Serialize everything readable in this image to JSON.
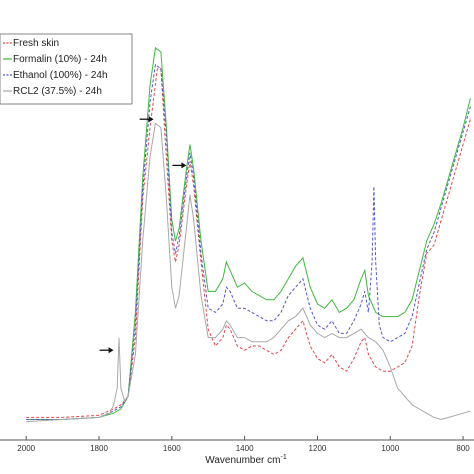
{
  "chart_data": {
    "type": "line",
    "title": "",
    "xlabel": "Wavenumber cm",
    "xlabel_superscript": "-1",
    "ylabel": "",
    "x_reversed": true,
    "xlim": [
      2050,
      770
    ],
    "ylim": [
      0,
      1
    ],
    "x_ticks": [
      2000,
      1800,
      1600,
      1400,
      1200,
      1000,
      800
    ],
    "x_tick_labels": [
      "2000",
      "1800",
      "1600",
      "1400",
      "1200",
      "1000",
      "800"
    ],
    "grid": false,
    "legend_position": "top-left",
    "series": [
      {
        "name": "Fresh skin",
        "color": "#e0474c",
        "dash": "3,2",
        "points": [
          [
            2000,
            0.03
          ],
          [
            1900,
            0.03
          ],
          [
            1800,
            0.035
          ],
          [
            1760,
            0.05
          ],
          [
            1740,
            0.06
          ],
          [
            1720,
            0.08
          ],
          [
            1700,
            0.22
          ],
          [
            1680,
            0.55
          ],
          [
            1660,
            0.72
          ],
          [
            1640,
            0.86
          ],
          [
            1630,
            0.86
          ],
          [
            1620,
            0.72
          ],
          [
            1600,
            0.45
          ],
          [
            1590,
            0.4
          ],
          [
            1580,
            0.44
          ],
          [
            1560,
            0.58
          ],
          [
            1550,
            0.64
          ],
          [
            1540,
            0.58
          ],
          [
            1520,
            0.4
          ],
          [
            1500,
            0.24
          ],
          [
            1480,
            0.2
          ],
          [
            1460,
            0.22
          ],
          [
            1450,
            0.25
          ],
          [
            1440,
            0.24
          ],
          [
            1420,
            0.2
          ],
          [
            1400,
            0.19
          ],
          [
            1380,
            0.2
          ],
          [
            1360,
            0.2
          ],
          [
            1340,
            0.19
          ],
          [
            1320,
            0.18
          ],
          [
            1300,
            0.19
          ],
          [
            1280,
            0.22
          ],
          [
            1260,
            0.24
          ],
          [
            1240,
            0.26
          ],
          [
            1220,
            0.2
          ],
          [
            1200,
            0.17
          ],
          [
            1180,
            0.16
          ],
          [
            1160,
            0.18
          ],
          [
            1140,
            0.15
          ],
          [
            1120,
            0.14
          ],
          [
            1100,
            0.17
          ],
          [
            1080,
            0.21
          ],
          [
            1070,
            0.22
          ],
          [
            1060,
            0.18
          ],
          [
            1040,
            0.15
          ],
          [
            1020,
            0.14
          ],
          [
            1000,
            0.14
          ],
          [
            980,
            0.15
          ],
          [
            960,
            0.16
          ],
          [
            940,
            0.2
          ],
          [
            920,
            0.32
          ],
          [
            900,
            0.42
          ],
          [
            880,
            0.44
          ],
          [
            860,
            0.5
          ],
          [
            840,
            0.56
          ],
          [
            820,
            0.62
          ],
          [
            800,
            0.68
          ],
          [
            780,
            0.74
          ]
        ]
      },
      {
        "name": "Formalin (10%) - 24h",
        "color": "#3fb83f",
        "dash": "",
        "points": [
          [
            2000,
            0.025
          ],
          [
            1900,
            0.025
          ],
          [
            1800,
            0.03
          ],
          [
            1760,
            0.04
          ],
          [
            1740,
            0.05
          ],
          [
            1720,
            0.08
          ],
          [
            1700,
            0.28
          ],
          [
            1680,
            0.6
          ],
          [
            1660,
            0.82
          ],
          [
            1645,
            0.91
          ],
          [
            1630,
            0.9
          ],
          [
            1615,
            0.72
          ],
          [
            1600,
            0.5
          ],
          [
            1590,
            0.45
          ],
          [
            1580,
            0.48
          ],
          [
            1560,
            0.62
          ],
          [
            1550,
            0.68
          ],
          [
            1540,
            0.62
          ],
          [
            1520,
            0.45
          ],
          [
            1500,
            0.33
          ],
          [
            1480,
            0.33
          ],
          [
            1460,
            0.36
          ],
          [
            1450,
            0.4
          ],
          [
            1440,
            0.38
          ],
          [
            1420,
            0.34
          ],
          [
            1400,
            0.35
          ],
          [
            1380,
            0.33
          ],
          [
            1360,
            0.32
          ],
          [
            1340,
            0.31
          ],
          [
            1320,
            0.31
          ],
          [
            1300,
            0.33
          ],
          [
            1280,
            0.36
          ],
          [
            1260,
            0.39
          ],
          [
            1240,
            0.41
          ],
          [
            1220,
            0.34
          ],
          [
            1200,
            0.3
          ],
          [
            1180,
            0.29
          ],
          [
            1160,
            0.31
          ],
          [
            1140,
            0.28
          ],
          [
            1120,
            0.29
          ],
          [
            1100,
            0.31
          ],
          [
            1080,
            0.36
          ],
          [
            1070,
            0.38
          ],
          [
            1060,
            0.32
          ],
          [
            1040,
            0.28
          ],
          [
            1020,
            0.27
          ],
          [
            1000,
            0.27
          ],
          [
            980,
            0.27
          ],
          [
            960,
            0.28
          ],
          [
            940,
            0.31
          ],
          [
            920,
            0.38
          ],
          [
            900,
            0.45
          ],
          [
            880,
            0.49
          ],
          [
            860,
            0.54
          ],
          [
            840,
            0.6
          ],
          [
            820,
            0.66
          ],
          [
            800,
            0.72
          ],
          [
            780,
            0.79
          ]
        ]
      },
      {
        "name": "Ethanol (100%) - 24h",
        "color": "#5057c8",
        "dash": "3,2",
        "points": [
          [
            2000,
            0.025
          ],
          [
            1900,
            0.025
          ],
          [
            1800,
            0.03
          ],
          [
            1760,
            0.045
          ],
          [
            1740,
            0.055
          ],
          [
            1720,
            0.08
          ],
          [
            1700,
            0.25
          ],
          [
            1680,
            0.57
          ],
          [
            1660,
            0.78
          ],
          [
            1645,
            0.87
          ],
          [
            1630,
            0.86
          ],
          [
            1615,
            0.7
          ],
          [
            1600,
            0.47
          ],
          [
            1590,
            0.42
          ],
          [
            1580,
            0.46
          ],
          [
            1560,
            0.6
          ],
          [
            1550,
            0.66
          ],
          [
            1540,
            0.6
          ],
          [
            1520,
            0.42
          ],
          [
            1500,
            0.29
          ],
          [
            1480,
            0.28
          ],
          [
            1460,
            0.3
          ],
          [
            1450,
            0.34
          ],
          [
            1440,
            0.33
          ],
          [
            1420,
            0.29
          ],
          [
            1400,
            0.29
          ],
          [
            1380,
            0.28
          ],
          [
            1360,
            0.27
          ],
          [
            1340,
            0.26
          ],
          [
            1320,
            0.26
          ],
          [
            1300,
            0.28
          ],
          [
            1280,
            0.32
          ],
          [
            1260,
            0.34
          ],
          [
            1240,
            0.36
          ],
          [
            1220,
            0.29
          ],
          [
            1200,
            0.25
          ],
          [
            1180,
            0.24
          ],
          [
            1160,
            0.26
          ],
          [
            1140,
            0.23
          ],
          [
            1120,
            0.23
          ],
          [
            1100,
            0.26
          ],
          [
            1080,
            0.3
          ],
          [
            1070,
            0.33
          ],
          [
            1060,
            0.28
          ],
          [
            1050,
            0.4
          ],
          [
            1045,
            0.58
          ],
          [
            1040,
            0.4
          ],
          [
            1030,
            0.25
          ],
          [
            1020,
            0.22
          ],
          [
            1000,
            0.21
          ],
          [
            980,
            0.22
          ],
          [
            960,
            0.23
          ],
          [
            940,
            0.27
          ],
          [
            920,
            0.35
          ],
          [
            900,
            0.43
          ],
          [
            880,
            0.47
          ],
          [
            860,
            0.53
          ],
          [
            840,
            0.59
          ],
          [
            820,
            0.65
          ],
          [
            800,
            0.71
          ],
          [
            780,
            0.77
          ]
        ]
      },
      {
        "name": "RCL2 (37.5%) - 24h",
        "color": "#a8a8a8",
        "dash": "",
        "points": [
          [
            2000,
            0.02
          ],
          [
            1900,
            0.025
          ],
          [
            1800,
            0.03
          ],
          [
            1770,
            0.04
          ],
          [
            1760,
            0.06
          ],
          [
            1750,
            0.1
          ],
          [
            1745,
            0.22
          ],
          [
            1740,
            0.1
          ],
          [
            1730,
            0.07
          ],
          [
            1720,
            0.08
          ],
          [
            1700,
            0.18
          ],
          [
            1680,
            0.45
          ],
          [
            1660,
            0.65
          ],
          [
            1645,
            0.73
          ],
          [
            1630,
            0.72
          ],
          [
            1615,
            0.55
          ],
          [
            1600,
            0.34
          ],
          [
            1590,
            0.29
          ],
          [
            1580,
            0.32
          ],
          [
            1560,
            0.48
          ],
          [
            1550,
            0.56
          ],
          [
            1540,
            0.5
          ],
          [
            1520,
            0.32
          ],
          [
            1500,
            0.22
          ],
          [
            1480,
            0.22
          ],
          [
            1460,
            0.24
          ],
          [
            1450,
            0.26
          ],
          [
            1440,
            0.25
          ],
          [
            1420,
            0.22
          ],
          [
            1400,
            0.22
          ],
          [
            1380,
            0.21
          ],
          [
            1360,
            0.21
          ],
          [
            1340,
            0.21
          ],
          [
            1320,
            0.22
          ],
          [
            1300,
            0.24
          ],
          [
            1280,
            0.26
          ],
          [
            1260,
            0.27
          ],
          [
            1240,
            0.29
          ],
          [
            1220,
            0.25
          ],
          [
            1200,
            0.23
          ],
          [
            1180,
            0.22
          ],
          [
            1160,
            0.23
          ],
          [
            1140,
            0.22
          ],
          [
            1120,
            0.22
          ],
          [
            1100,
            0.23
          ],
          [
            1080,
            0.24
          ],
          [
            1060,
            0.22
          ],
          [
            1040,
            0.21
          ],
          [
            1020,
            0.19
          ],
          [
            1000,
            0.15
          ],
          [
            980,
            0.1
          ],
          [
            960,
            0.08
          ],
          [
            940,
            0.06
          ],
          [
            920,
            0.05
          ],
          [
            900,
            0.04
          ],
          [
            880,
            0.03
          ],
          [
            860,
            0.025
          ],
          [
            840,
            0.03
          ],
          [
            820,
            0.035
          ],
          [
            800,
            0.04
          ],
          [
            780,
            0.045
          ]
        ]
      }
    ],
    "annotations": [
      {
        "type": "arrow",
        "x": 1650,
        "y": 0.74
      },
      {
        "type": "arrow",
        "x": 1560,
        "y": 0.63
      },
      {
        "type": "arrow",
        "x": 1760,
        "y": 0.19
      }
    ]
  }
}
